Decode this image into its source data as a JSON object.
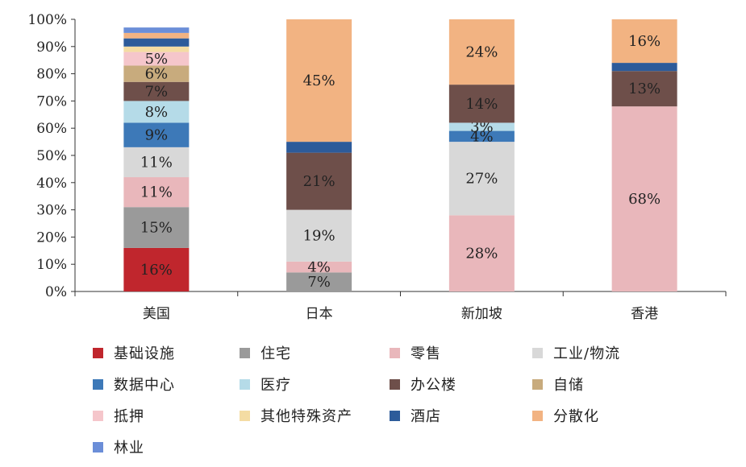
{
  "chart_data": {
    "type": "stacked-bar-100",
    "categories": [
      "美国",
      "日本",
      "新加坡",
      "香港"
    ],
    "y_ticks": [
      "0%",
      "10%",
      "20%",
      "30%",
      "40%",
      "50%",
      "60%",
      "70%",
      "80%",
      "90%",
      "100%"
    ],
    "ylim": [
      0,
      100
    ],
    "legend_position": "bottom",
    "series": [
      {
        "name": "基础设施",
        "color": "#c0262d",
        "values": [
          16,
          0,
          0,
          0
        ],
        "labels": [
          "16%",
          "",
          "",
          ""
        ]
      },
      {
        "name": "住宅",
        "color": "#9a9a9a",
        "values": [
          15,
          7,
          0,
          0
        ],
        "labels": [
          "15%",
          "7%",
          "",
          ""
        ]
      },
      {
        "name": "零售",
        "color": "#e9b7bb",
        "values": [
          11,
          4,
          28,
          68
        ],
        "labels": [
          "11%",
          "4%",
          "28%",
          "68%"
        ]
      },
      {
        "name": "工业/物流",
        "color": "#d8d8d8",
        "values": [
          11,
          19,
          27,
          0
        ],
        "labels": [
          "11%",
          "19%",
          "27%",
          ""
        ]
      },
      {
        "name": "数据中心",
        "color": "#3d79b8",
        "values": [
          9,
          0,
          4,
          0
        ],
        "labels": [
          "9%",
          "",
          "4%",
          ""
        ]
      },
      {
        "name": "医疗",
        "color": "#b5dbe8",
        "values": [
          8,
          0,
          3,
          0
        ],
        "labels": [
          "8%",
          "",
          "3%",
          ""
        ]
      },
      {
        "name": "办公楼",
        "color": "#6e4f4a",
        "values": [
          7,
          21,
          14,
          13
        ],
        "labels": [
          "7%",
          "21%",
          "14%",
          "13%"
        ]
      },
      {
        "name": "自储",
        "color": "#c8ab7d",
        "values": [
          6,
          0,
          0,
          0
        ],
        "labels": [
          "6%",
          "",
          "",
          ""
        ]
      },
      {
        "name": "抵押",
        "color": "#f5c6cb",
        "values": [
          5,
          0,
          0,
          0
        ],
        "labels": [
          "5%",
          "",
          "",
          ""
        ]
      },
      {
        "name": "其他特殊资产",
        "color": "#f4dca3",
        "values": [
          2,
          0,
          0,
          0
        ],
        "labels": [
          "",
          "",
          "",
          ""
        ]
      },
      {
        "name": "酒店",
        "color": "#2d5b9a",
        "values": [
          3,
          4,
          0,
          3
        ],
        "labels": [
          "",
          "",
          "",
          ""
        ]
      },
      {
        "name": "分散化",
        "color": "#f2b382",
        "values": [
          2,
          45,
          24,
          16
        ],
        "labels": [
          "",
          "45%",
          "24%",
          "16%"
        ]
      },
      {
        "name": "林业",
        "color": "#6b8ed8",
        "values": [
          2,
          0,
          0,
          0
        ],
        "labels": [
          "",
          "",
          "",
          ""
        ]
      }
    ]
  }
}
